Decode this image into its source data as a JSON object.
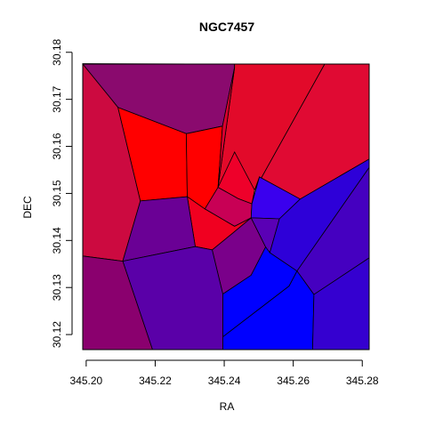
{
  "chart_data": {
    "type": "voronoi",
    "title": "NGC7457",
    "xlabel": "RA",
    "ylabel": "DEC",
    "xlim": [
      345.199,
      345.282
    ],
    "ylim": [
      30.1168,
      30.1775
    ],
    "x_ticks": [
      345.2,
      345.22,
      345.24,
      345.26,
      345.28
    ],
    "x_tick_labels": [
      "345.20",
      "345.22",
      "345.24",
      "345.26",
      "345.28"
    ],
    "y_ticks": [
      30.12,
      30.13,
      30.14,
      30.15,
      30.16,
      30.17,
      30.18
    ],
    "y_tick_labels": [
      "30.12",
      "30.13",
      "30.14",
      "30.15",
      "30.16",
      "30.17",
      "30.18"
    ],
    "color_scale": "blue (low) to red (high)",
    "cells": [
      {
        "color": "#8a0a6e",
        "vertices": [
          [
            345.199,
            30.1775
          ],
          [
            345.199,
            30.1776
          ],
          [
            345.243,
            30.1775
          ],
          [
            345.243,
            30.1768
          ],
          [
            345.2395,
            30.1643
          ],
          [
            345.229,
            30.1627
          ],
          [
            345.2092,
            30.1683
          ]
        ]
      },
      {
        "color": "#e20a2a",
        "vertices": [
          [
            345.243,
            30.1775
          ],
          [
            345.2691,
            30.1775
          ],
          [
            345.2488,
            30.1507
          ],
          [
            345.248,
            30.1478
          ],
          [
            345.244,
            30.1489
          ],
          [
            345.2382,
            30.1513
          ],
          [
            345.243,
            30.1768
          ]
        ]
      },
      {
        "color": "#e00a33",
        "vertices": [
          [
            345.2691,
            30.1775
          ],
          [
            345.282,
            30.1775
          ],
          [
            345.282,
            30.1573
          ],
          [
            345.262,
            30.1488
          ],
          [
            345.2502,
            30.1535
          ],
          [
            345.2488,
            30.1507
          ]
        ]
      },
      {
        "color": "#cc0a40",
        "vertices": [
          [
            345.199,
            30.1775
          ],
          [
            345.2092,
            30.1683
          ],
          [
            345.2157,
            30.1484
          ],
          [
            345.2106,
            30.1356
          ],
          [
            345.199,
            30.1367
          ]
        ]
      },
      {
        "color": "#ff0000",
        "vertices": [
          [
            345.2092,
            30.1683
          ],
          [
            345.229,
            30.1627
          ],
          [
            345.2293,
            30.1493
          ],
          [
            345.2157,
            30.1484
          ]
        ]
      },
      {
        "color": "#ff0000",
        "vertices": [
          [
            345.229,
            30.1627
          ],
          [
            345.2395,
            30.1643
          ],
          [
            345.2382,
            30.1513
          ],
          [
            345.2344,
            30.1467
          ],
          [
            345.2293,
            30.1493
          ]
        ]
      },
      {
        "color": "#d8002f",
        "vertices": [
          [
            345.2395,
            30.1643
          ],
          [
            345.243,
            30.1768
          ],
          [
            345.2382,
            30.1513
          ]
        ]
      },
      {
        "color": "#ee002a",
        "vertices": [
          [
            345.2382,
            30.1513
          ],
          [
            345.244,
            30.1489
          ],
          [
            345.248,
            30.1478
          ],
          [
            345.2488,
            30.1507
          ],
          [
            345.243,
            30.1588
          ]
        ]
      },
      {
        "color": "#c80055",
        "vertices": [
          [
            345.2344,
            30.1467
          ],
          [
            345.2382,
            30.1513
          ],
          [
            345.244,
            30.1489
          ],
          [
            345.248,
            30.1478
          ],
          [
            345.2478,
            30.1448
          ],
          [
            345.243,
            30.143
          ]
        ]
      },
      {
        "color": "#f00020",
        "vertices": [
          [
            345.2293,
            30.1493
          ],
          [
            345.2344,
            30.1467
          ],
          [
            345.243,
            30.143
          ],
          [
            345.2478,
            30.1448
          ],
          [
            345.2422,
            30.1414
          ],
          [
            345.2365,
            30.138
          ],
          [
            345.2316,
            30.1387
          ]
        ]
      },
      {
        "color": "#3a00ee",
        "vertices": [
          [
            345.2478,
            30.1448
          ],
          [
            345.248,
            30.1478
          ],
          [
            345.2502,
            30.1535
          ],
          [
            345.262,
            30.1488
          ],
          [
            345.256,
            30.1446
          ]
        ]
      },
      {
        "color": "#6a0095",
        "vertices": [
          [
            345.2157,
            30.1484
          ],
          [
            345.2293,
            30.1493
          ],
          [
            345.2316,
            30.1387
          ],
          [
            345.2106,
            30.1356
          ]
        ]
      },
      {
        "color": "#7a008a",
        "vertices": [
          [
            345.2365,
            30.138
          ],
          [
            345.2422,
            30.1414
          ],
          [
            345.2478,
            30.1448
          ],
          [
            345.252,
            30.1386
          ],
          [
            345.2478,
            30.1326
          ],
          [
            345.2396,
            30.1286
          ]
        ]
      },
      {
        "color": "#5a00b5",
        "vertices": [
          [
            345.2478,
            30.1448
          ],
          [
            345.256,
            30.1446
          ],
          [
            345.2532,
            30.1374
          ],
          [
            345.252,
            30.1386
          ]
        ]
      },
      {
        "color": "#2e00d8",
        "vertices": [
          [
            345.256,
            30.1446
          ],
          [
            345.262,
            30.1488
          ],
          [
            345.282,
            30.1573
          ],
          [
            345.282,
            30.1555
          ],
          [
            345.2611,
            30.1335
          ],
          [
            345.2532,
            30.1374
          ]
        ]
      },
      {
        "color": "#4500c0",
        "vertices": [
          [
            345.2611,
            30.1335
          ],
          [
            345.282,
            30.1555
          ],
          [
            345.282,
            30.1363
          ],
          [
            345.266,
            30.1285
          ]
        ]
      },
      {
        "color": "#0000ff",
        "vertices": [
          [
            345.2396,
            30.1286
          ],
          [
            345.2478,
            30.1326
          ],
          [
            345.252,
            30.1386
          ],
          [
            345.2532,
            30.1374
          ],
          [
            345.2611,
            30.1335
          ],
          [
            345.2588,
            30.1303
          ],
          [
            345.2396,
            30.1195
          ]
        ]
      },
      {
        "color": "#0000ff",
        "vertices": [
          [
            345.2396,
            30.1195
          ],
          [
            345.2588,
            30.1303
          ],
          [
            345.2611,
            30.1335
          ],
          [
            345.266,
            30.1285
          ],
          [
            345.2656,
            30.1168
          ],
          [
            345.2396,
            30.1168
          ]
        ]
      },
      {
        "color": "#3500d0",
        "vertices": [
          [
            345.2656,
            30.1168
          ],
          [
            345.266,
            30.1285
          ],
          [
            345.282,
            30.1363
          ],
          [
            345.282,
            30.1168
          ]
        ]
      },
      {
        "color": "#5a00a8",
        "vertices": [
          [
            345.2106,
            30.1356
          ],
          [
            345.2316,
            30.1387
          ],
          [
            345.2365,
            30.138
          ],
          [
            345.2396,
            30.1286
          ],
          [
            345.2396,
            30.1168
          ],
          [
            345.2192,
            30.1168
          ]
        ]
      },
      {
        "color": "#8a006e",
        "vertices": [
          [
            345.199,
            30.1367
          ],
          [
            345.2106,
            30.1356
          ],
          [
            345.2192,
            30.1168
          ],
          [
            345.199,
            30.1168
          ]
        ]
      }
    ]
  }
}
